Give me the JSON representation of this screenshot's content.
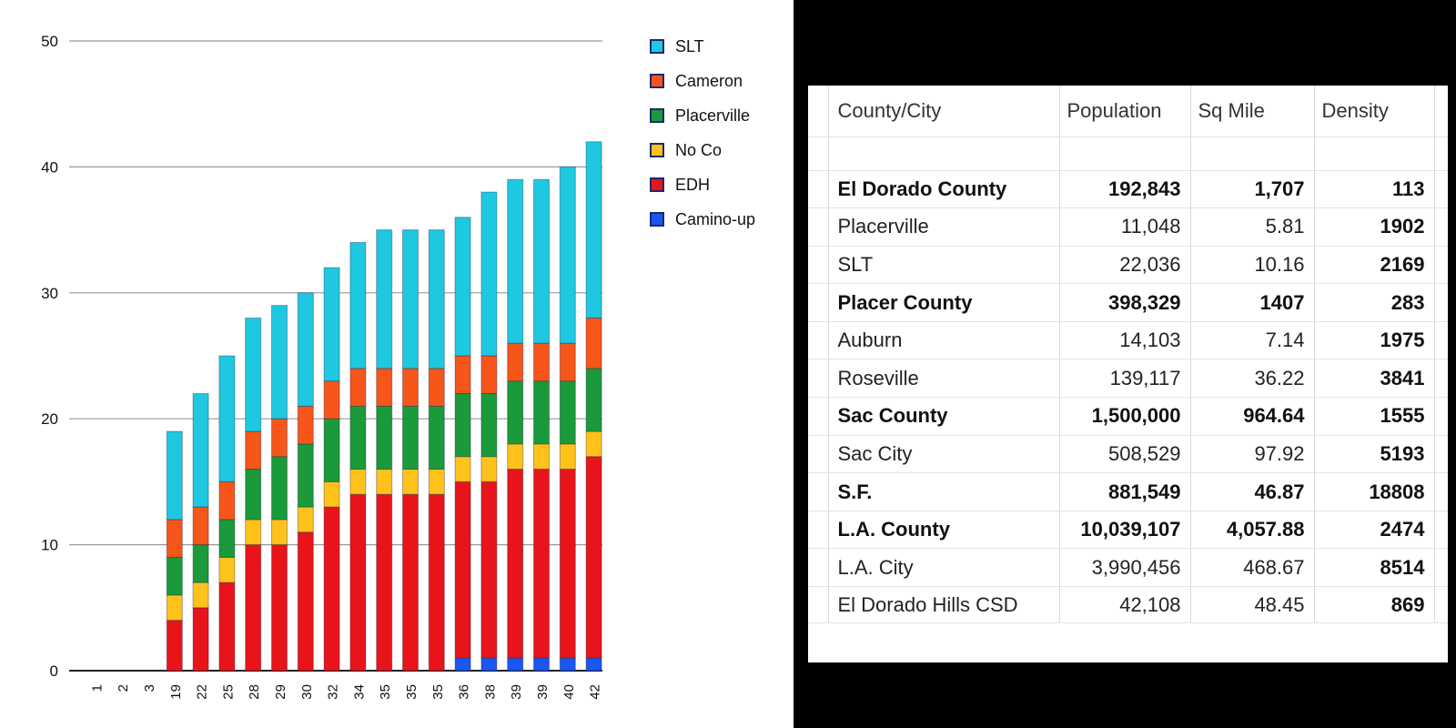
{
  "chart_data": {
    "type": "bar",
    "stacked": true,
    "categories": [
      "1",
      "2",
      "3",
      "19",
      "22",
      "25",
      "28",
      "29",
      "30",
      "32",
      "34",
      "35",
      "35",
      "35",
      "36",
      "38",
      "39",
      "39",
      "40",
      "42"
    ],
    "series": [
      {
        "name": "Camino-up",
        "color": "#1a56f0",
        "values": [
          0,
          0,
          0,
          0,
          0,
          0,
          0,
          0,
          0,
          0,
          0,
          0,
          0,
          0,
          1,
          1,
          1,
          1,
          1,
          1
        ]
      },
      {
        "name": "EDH",
        "color": "#e8141a",
        "values": [
          0,
          0,
          0,
          4,
          5,
          7,
          10,
          10,
          11,
          13,
          14,
          14,
          14,
          14,
          14,
          14,
          15,
          15,
          15,
          16
        ]
      },
      {
        "name": "No Co",
        "color": "#ffc21a",
        "values": [
          0,
          0,
          0,
          2,
          2,
          2,
          2,
          2,
          2,
          2,
          2,
          2,
          2,
          2,
          2,
          2,
          2,
          2,
          2,
          2
        ]
      },
      {
        "name": "Placerville",
        "color": "#1a9a3a",
        "values": [
          0,
          0,
          0,
          3,
          3,
          3,
          4,
          5,
          5,
          5,
          5,
          5,
          5,
          5,
          5,
          5,
          5,
          5,
          5,
          5
        ]
      },
      {
        "name": "Cameron",
        "color": "#f6561a",
        "values": [
          0,
          0,
          0,
          3,
          3,
          3,
          3,
          3,
          3,
          3,
          3,
          3,
          3,
          3,
          3,
          3,
          3,
          3,
          3,
          4
        ]
      },
      {
        "name": "SLT",
        "color": "#1ec8e0",
        "values": [
          0,
          0,
          0,
          7,
          9,
          10,
          9,
          9,
          9,
          9,
          10,
          11,
          11,
          11,
          11,
          13,
          13,
          13,
          14,
          14
        ]
      }
    ],
    "legend_order": [
      "SLT",
      "Cameron",
      "Placerville",
      "No Co",
      "EDH",
      "Camino-up"
    ],
    "ylim": [
      0,
      50
    ],
    "yticks": [
      0,
      10,
      20,
      30,
      40,
      50
    ],
    "legend_position": "right",
    "grid": true
  },
  "table": {
    "headers": [
      "County/City",
      "Population",
      "Sq Mile",
      "Density"
    ],
    "rows": [
      {
        "name": "El Dorado County",
        "population": "192,843",
        "sqmile": "1,707",
        "density": "113",
        "summary": true
      },
      {
        "name": "Placerville",
        "population": "11,048",
        "sqmile": "5.81",
        "density": "1902",
        "summary": false
      },
      {
        "name": "SLT",
        "population": "22,036",
        "sqmile": "10.16",
        "density": "2169",
        "summary": false
      },
      {
        "name": "Placer County",
        "population": "398,329",
        "sqmile": "1407",
        "density": "283",
        "summary": true
      },
      {
        "name": "Auburn",
        "population": "14,103",
        "sqmile": "7.14",
        "density": "1975",
        "summary": false
      },
      {
        "name": "Roseville",
        "population": "139,117",
        "sqmile": "36.22",
        "density": "3841",
        "summary": false
      },
      {
        "name": "Sac County",
        "population": "1,500,000",
        "sqmile": "964.64",
        "density": "1555",
        "summary": true
      },
      {
        "name": "Sac City",
        "population": "508,529",
        "sqmile": "97.92",
        "density": "5193",
        "summary": false
      },
      {
        "name": "S.F.",
        "population": "881,549",
        "sqmile": "46.87",
        "density": "18808",
        "summary": true
      },
      {
        "name": "L.A. County",
        "population": "10,039,107",
        "sqmile": "4,057.88",
        "density": "2474",
        "summary": true
      },
      {
        "name": "L.A. City",
        "population": "3,990,456",
        "sqmile": "468.67",
        "density": "8514",
        "summary": false
      },
      {
        "name": "El Dorado Hills CSD",
        "population": "42,108",
        "sqmile": "48.45",
        "density": "869",
        "summary": false
      }
    ]
  }
}
